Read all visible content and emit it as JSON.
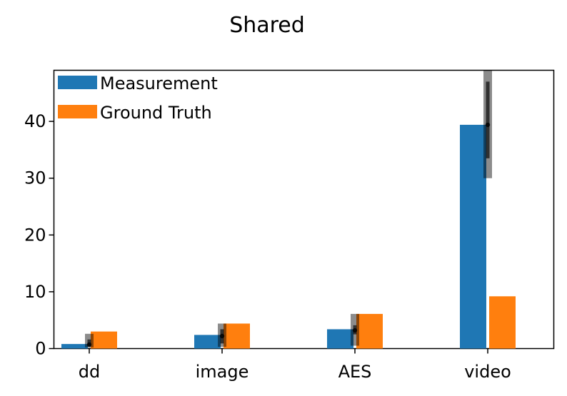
{
  "chart_data": {
    "type": "bar",
    "title": "Shared",
    "xlabel": "",
    "ylabel": "",
    "categories": [
      "dd",
      "image",
      "AES",
      "video"
    ],
    "ylim": [
      0,
      49
    ],
    "yticks": [
      0,
      10,
      20,
      30,
      40
    ],
    "grid": false,
    "legend_position": "top-left",
    "series": [
      {
        "name": "Measurement",
        "color": "#1f77b4",
        "values": [
          0.8,
          2.4,
          3.4,
          39.4
        ],
        "error_bars": [
          {
            "outer": [
              0.2,
              2.6
            ],
            "inner": [
              0.4,
              1.6
            ],
            "median": 0.7
          },
          {
            "outer": [
              0.3,
              4.4
            ],
            "inner": [
              0.9,
              3.4
            ],
            "median": 2.2
          },
          {
            "outer": [
              0.5,
              6.1
            ],
            "inner": [
              2.5,
              4.1
            ],
            "median": 3.2
          },
          {
            "outer": [
              30.0,
              49.0
            ],
            "inner": [
              33.5,
              47.0
            ],
            "median": 39.4
          }
        ]
      },
      {
        "name": "Ground Truth",
        "color": "#ff7f0e",
        "values": [
          3.0,
          4.4,
          6.1,
          9.2
        ]
      }
    ]
  }
}
